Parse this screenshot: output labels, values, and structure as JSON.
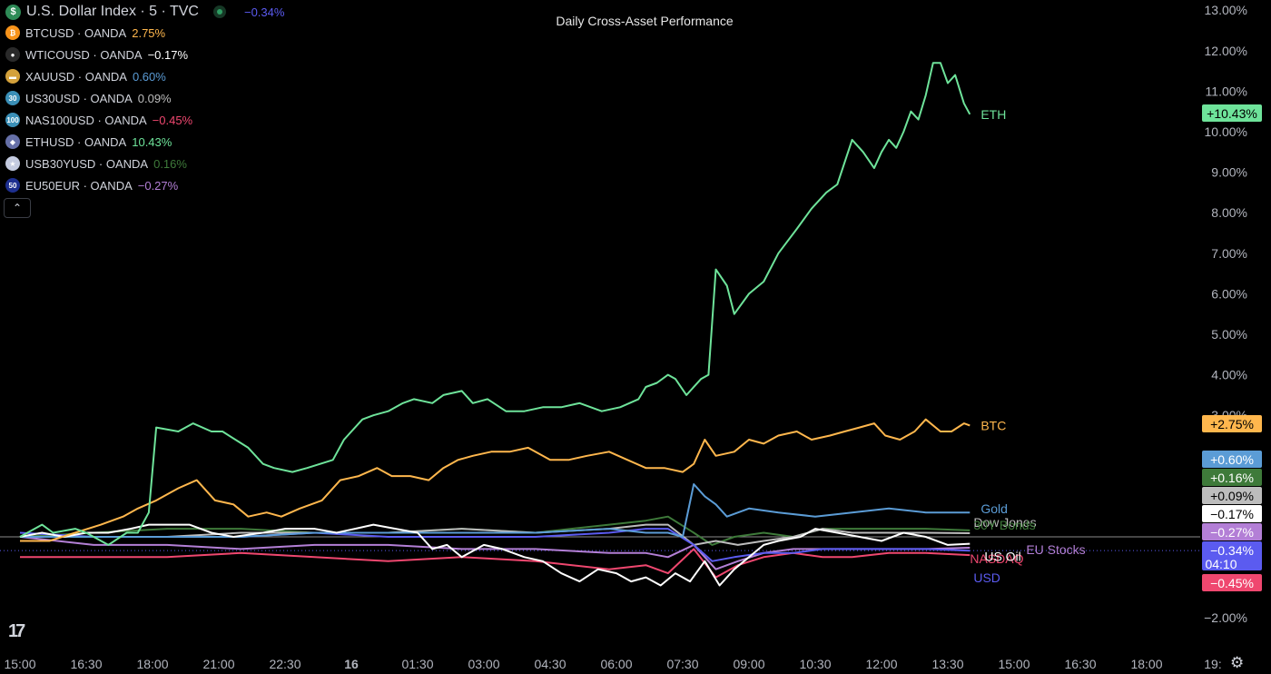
{
  "title": "Daily Cross-Asset Performance",
  "legend": {
    "main": {
      "symbol": "U.S. Dollar Index · 5 · TVC",
      "change": "−0.34%",
      "icon": "dollar-icon",
      "color": "#5b5bf0"
    },
    "items": [
      {
        "key": "btc",
        "label": "BTCUSD · OANDA",
        "change": "2.75%",
        "icon_text": "₿",
        "icon_bg": "#f7931a",
        "color": "#ffb74d"
      },
      {
        "key": "wti",
        "label": "WTICOUSD · OANDA",
        "change": "−0.17%",
        "icon_text": "●",
        "icon_bg": "#2a2a2a",
        "color": "#ffffff"
      },
      {
        "key": "xau",
        "label": "XAUUSD · OANDA",
        "change": "0.60%",
        "icon_text": "▬",
        "icon_bg": "#d4a13b",
        "color": "#5b9cd6"
      },
      {
        "key": "us30",
        "label": "US30USD · OANDA",
        "change": "0.09%",
        "icon_text": "30",
        "icon_bg": "#3a8fb7",
        "color": "#bdbdbd"
      },
      {
        "key": "nas",
        "label": "NAS100USD · OANDA",
        "change": "−0.45%",
        "icon_text": "100",
        "icon_bg": "#3a8fb7",
        "color": "#ef476f"
      },
      {
        "key": "eth",
        "label": "ETHUSD · OANDA",
        "change": "10.43%",
        "icon_text": "◆",
        "icon_bg": "#6670a8",
        "color": "#6ee39a"
      },
      {
        "key": "usb",
        "label": "USB30YUSD · OANDA",
        "change": "0.16%",
        "icon_text": "★",
        "icon_bg": "#c4cbe0",
        "color": "#3e7a3a"
      },
      {
        "key": "eu50",
        "label": "EU50EUR · OANDA",
        "change": "−0.27%",
        "icon_text": "50",
        "icon_bg": "#1d2f8f",
        "color": "#b37fd6"
      }
    ]
  },
  "chart_data": {
    "type": "line",
    "title": "Daily Cross-Asset Performance",
    "y_unit": "%",
    "ylim": [
      -2.0,
      13.0
    ],
    "y_ticks": [
      "13.00%",
      "12.00%",
      "11.00%",
      "10.00%",
      "9.00%",
      "8.00%",
      "7.00%",
      "6.00%",
      "5.00%",
      "4.00%",
      "3.00%",
      "−2.00%"
    ],
    "x_ticks": [
      "15:00",
      "16:30",
      "18:00",
      "21:00",
      "22:30",
      "16",
      "01:30",
      "03:00",
      "04:30",
      "06:00",
      "07:30",
      "09:00",
      "10:30",
      "12:00",
      "13:30",
      "15:00",
      "16:30",
      "18:00",
      "19:"
    ],
    "x_range": [
      0,
      1300
    ],
    "x_note": "x values are minutes after 15:00 on the previous day; last data point at 16:30 of the 16th",
    "series": [
      {
        "name": "ETH",
        "color": "#6ee39a",
        "last": "+10.43%",
        "x": [
          0,
          30,
          45,
          75,
          90,
          120,
          145,
          160,
          175,
          185,
          215,
          235,
          260,
          275,
          310,
          330,
          345,
          370,
          390,
          425,
          440,
          465,
          480,
          500,
          520,
          535,
          560,
          575,
          600,
          615,
          635,
          660,
          685,
          710,
          735,
          760,
          790,
          815,
          840,
          850,
          865,
          880,
          890,
          905,
          925,
          935,
          945,
          960,
          970,
          990,
          1010,
          1030,
          1055,
          1075,
          1095,
          1110,
          1130,
          1145,
          1160,
          1170,
          1180,
          1190,
          1200,
          1210,
          1220,
          1230,
          1240,
          1250,
          1260,
          1270,
          1282,
          1290
        ],
        "y": [
          0,
          0.3,
          0.1,
          0.2,
          0.1,
          -0.2,
          0.1,
          0.1,
          0.6,
          2.7,
          2.6,
          2.8,
          2.6,
          2.6,
          2.2,
          1.8,
          1.7,
          1.6,
          1.7,
          1.9,
          2.4,
          2.9,
          3.0,
          3.1,
          3.3,
          3.4,
          3.3,
          3.5,
          3.6,
          3.3,
          3.4,
          3.1,
          3.1,
          3.2,
          3.2,
          3.3,
          3.1,
          3.2,
          3.4,
          3.7,
          3.8,
          4.0,
          3.9,
          3.5,
          3.9,
          4.0,
          6.6,
          6.2,
          5.5,
          6.0,
          6.3,
          7.0,
          7.6,
          8.1,
          8.5,
          8.7,
          9.8,
          9.5,
          9.1,
          9.5,
          9.8,
          9.6,
          10.0,
          10.5,
          10.3,
          10.9,
          11.7,
          11.7,
          11.2,
          11.4,
          10.7,
          10.43
        ]
      },
      {
        "name": "BTC",
        "color": "#ffb74d",
        "last": "+2.75%",
        "x": [
          0,
          40,
          75,
          110,
          140,
          160,
          185,
          215,
          240,
          265,
          290,
          310,
          335,
          355,
          380,
          410,
          435,
          460,
          485,
          505,
          530,
          555,
          575,
          595,
          615,
          640,
          665,
          690,
          720,
          745,
          770,
          800,
          825,
          850,
          875,
          900,
          915,
          930,
          945,
          970,
          990,
          1010,
          1030,
          1055,
          1075,
          1100,
          1120,
          1140,
          1160,
          1175,
          1195,
          1215,
          1230,
          1250,
          1265,
          1282,
          1290
        ],
        "y": [
          -0.1,
          -0.1,
          0.1,
          0.3,
          0.5,
          0.7,
          0.9,
          1.2,
          1.4,
          0.9,
          0.8,
          0.5,
          0.6,
          0.5,
          0.7,
          0.9,
          1.4,
          1.5,
          1.7,
          1.5,
          1.5,
          1.4,
          1.7,
          1.9,
          2.0,
          2.1,
          2.1,
          2.2,
          1.9,
          1.9,
          2.0,
          2.1,
          1.9,
          1.7,
          1.7,
          1.6,
          1.8,
          2.4,
          2.0,
          2.1,
          2.4,
          2.3,
          2.5,
          2.6,
          2.4,
          2.5,
          2.6,
          2.7,
          2.8,
          2.5,
          2.4,
          2.6,
          2.9,
          2.6,
          2.6,
          2.8,
          2.75
        ]
      },
      {
        "name": "Gold",
        "color": "#5b9cd6",
        "last": "+0.60%",
        "x": [
          0,
          100,
          200,
          300,
          400,
          500,
          600,
          700,
          800,
          850,
          880,
          900,
          915,
          930,
          945,
          960,
          990,
          1030,
          1080,
          1130,
          1180,
          1230,
          1290
        ],
        "y": [
          0,
          0.0,
          0.0,
          0.0,
          0.1,
          0.1,
          0.1,
          0.1,
          0.2,
          0.1,
          0.1,
          0.0,
          1.3,
          1.0,
          0.8,
          0.5,
          0.7,
          0.6,
          0.5,
          0.6,
          0.7,
          0.6,
          0.6
        ]
      },
      {
        "name": "30Y Bonds",
        "color": "#3e7a3a",
        "last": "+0.16%",
        "x": [
          0,
          100,
          200,
          300,
          400,
          500,
          600,
          700,
          800,
          850,
          880,
          915,
          940,
          970,
          1010,
          1050,
          1090,
          1130,
          1180,
          1230,
          1290
        ],
        "y": [
          0,
          0.1,
          0.2,
          0.2,
          0.1,
          0.1,
          0.2,
          0.1,
          0.3,
          0.4,
          0.5,
          0.1,
          -0.2,
          0.0,
          0.1,
          0.0,
          0.2,
          0.2,
          0.2,
          0.2,
          0.16
        ]
      },
      {
        "name": "Dow Jones",
        "color": "#bdbdbd",
        "last": "+0.09%",
        "x": [
          0,
          100,
          200,
          300,
          400,
          500,
          600,
          700,
          800,
          850,
          880,
          915,
          945,
          975,
          1010,
          1050,
          1090,
          1130,
          1180,
          1230,
          1290
        ],
        "y": [
          0,
          0.0,
          0.0,
          0.1,
          0.1,
          0.1,
          0.2,
          0.1,
          0.2,
          0.3,
          0.3,
          -0.2,
          -0.1,
          -0.2,
          -0.1,
          0.0,
          0.2,
          0.1,
          0.1,
          0.1,
          0.09
        ]
      },
      {
        "name": "US Oil",
        "color": "#ffffff",
        "last": "−0.17%",
        "x": [
          0,
          30,
          60,
          90,
          120,
          150,
          175,
          200,
          230,
          260,
          290,
          330,
          360,
          400,
          430,
          455,
          480,
          510,
          540,
          560,
          580,
          600,
          630,
          655,
          685,
          710,
          735,
          760,
          785,
          810,
          830,
          850,
          870,
          890,
          910,
          930,
          950,
          970,
          990,
          1010,
          1030,
          1060,
          1080,
          1110,
          1140,
          1170,
          1200,
          1230,
          1260,
          1290
        ],
        "y": [
          0,
          0.1,
          0.0,
          0.1,
          0.1,
          0.2,
          0.3,
          0.3,
          0.3,
          0.1,
          0.0,
          0.1,
          0.2,
          0.2,
          0.1,
          0.2,
          0.3,
          0.2,
          0.1,
          -0.3,
          -0.2,
          -0.5,
          -0.2,
          -0.3,
          -0.5,
          -0.6,
          -0.9,
          -1.1,
          -0.8,
          -0.9,
          -1.1,
          -1.0,
          -1.2,
          -0.9,
          -1.1,
          -0.6,
          -1.2,
          -0.8,
          -0.5,
          -0.2,
          -0.1,
          0.0,
          0.2,
          0.1,
          0.0,
          -0.1,
          0.1,
          0.0,
          -0.2,
          -0.17
        ]
      },
      {
        "name": "EU Stocks",
        "color": "#b37fd6",
        "last": "−0.27%",
        "x": [
          0,
          100,
          200,
          300,
          400,
          500,
          600,
          700,
          800,
          850,
          880,
          915,
          945,
          975,
          1010,
          1050,
          1090,
          1130,
          1180,
          1230,
          1290
        ],
        "y": [
          0,
          -0.2,
          -0.2,
          -0.3,
          -0.2,
          -0.2,
          -0.3,
          -0.3,
          -0.4,
          -0.4,
          -0.5,
          -0.2,
          -0.8,
          -0.6,
          -0.4,
          -0.3,
          -0.3,
          -0.3,
          -0.3,
          -0.3,
          -0.27
        ]
      },
      {
        "name": "USD",
        "color": "#5b5bf0",
        "last": "−0.34%",
        "x": [
          0,
          100,
          200,
          300,
          400,
          500,
          600,
          700,
          800,
          850,
          880,
          915,
          940,
          970,
          1010,
          1050,
          1090,
          1130,
          1180,
          1230,
          1290
        ],
        "y": [
          0.1,
          0.0,
          0.0,
          0.0,
          0.1,
          0.0,
          0.0,
          0.0,
          0.1,
          0.2,
          0.2,
          -0.2,
          -0.6,
          -0.5,
          -0.4,
          -0.4,
          -0.3,
          -0.3,
          -0.3,
          -0.3,
          -0.34
        ]
      },
      {
        "name": "NASDAQ",
        "color": "#ef476f",
        "last": "−0.45%",
        "x": [
          0,
          100,
          200,
          300,
          400,
          500,
          600,
          700,
          800,
          850,
          880,
          915,
          945,
          975,
          1010,
          1050,
          1090,
          1130,
          1180,
          1230,
          1290
        ],
        "y": [
          -0.5,
          -0.5,
          -0.5,
          -0.4,
          -0.5,
          -0.6,
          -0.5,
          -0.6,
          -0.8,
          -0.7,
          -0.9,
          -0.3,
          -1.0,
          -0.7,
          -0.5,
          -0.4,
          -0.5,
          -0.5,
          -0.4,
          -0.4,
          -0.45
        ]
      }
    ],
    "side_badge_extra": "04:10",
    "line_labels": [
      {
        "text": "ETH",
        "series": "ETH"
      },
      {
        "text": "BTC",
        "series": "BTC"
      },
      {
        "text": "Gold",
        "series": "Gold"
      },
      {
        "text": "Dow Jones",
        "series": "Dow Jones"
      },
      {
        "text": "30Y Bonds",
        "series": "30Y Bonds"
      },
      {
        "text": "NASDAQ",
        "series": "NASDAQ"
      },
      {
        "text": "EU Stocks",
        "series": "EU Stocks"
      },
      {
        "text": "US Oil",
        "series": "US Oil"
      },
      {
        "text": "USD",
        "series": "USD"
      }
    ],
    "grid": false,
    "legend_position": "top-left"
  },
  "icons": {
    "collapse": "chevron-up-icon",
    "logo": "tradingview-logo",
    "settings": "gear-icon"
  }
}
